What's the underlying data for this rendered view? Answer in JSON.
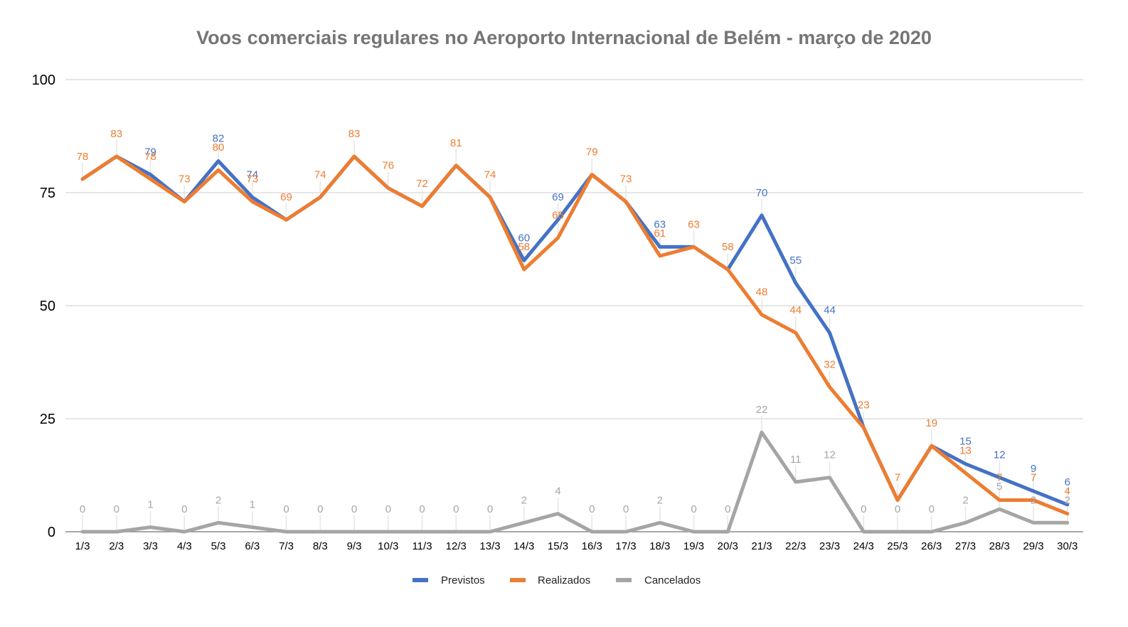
{
  "chart_data": {
    "type": "line",
    "title": "Voos comerciais regulares no Aeroporto Internacional de Belém - março de 2020",
    "xlabel": "",
    "ylabel": "",
    "ylim": [
      0,
      100
    ],
    "yticks": [
      0,
      25,
      50,
      75,
      100
    ],
    "grid": true,
    "legend_position": "bottom-center",
    "categories": [
      "1/3",
      "2/3",
      "3/3",
      "4/3",
      "5/3",
      "6/3",
      "7/3",
      "8/3",
      "9/3",
      "10/3",
      "11/3",
      "12/3",
      "13/3",
      "14/3",
      "15/3",
      "16/3",
      "17/3",
      "18/3",
      "19/3",
      "20/3",
      "21/3",
      "22/3",
      "23/3",
      "24/3",
      "25/3",
      "26/3",
      "27/3",
      "28/3",
      "29/3",
      "30/3"
    ],
    "series": [
      {
        "name": "Previstos",
        "color": "#4472c4",
        "values": [
          78,
          83,
          79,
          73,
          82,
          74,
          69,
          74,
          83,
          76,
          72,
          81,
          74,
          60,
          69,
          79,
          73,
          63,
          63,
          58,
          70,
          55,
          44,
          23,
          7,
          19,
          15,
          12,
          9,
          6
        ],
        "show_labels": [
          false,
          false,
          true,
          false,
          true,
          true,
          false,
          false,
          false,
          false,
          false,
          false,
          false,
          true,
          true,
          false,
          false,
          true,
          false,
          false,
          true,
          true,
          true,
          false,
          false,
          false,
          true,
          true,
          true,
          true
        ]
      },
      {
        "name": "Realizados",
        "color": "#ed7d31",
        "values": [
          78,
          83,
          78,
          73,
          80,
          73,
          69,
          74,
          83,
          76,
          72,
          81,
          74,
          58,
          65,
          79,
          73,
          61,
          63,
          58,
          48,
          44,
          32,
          23,
          7,
          19,
          13,
          7,
          7,
          4
        ],
        "show_labels": [
          true,
          true,
          true,
          true,
          true,
          true,
          true,
          true,
          true,
          true,
          true,
          true,
          true,
          true,
          true,
          true,
          true,
          true,
          true,
          true,
          true,
          true,
          true,
          true,
          true,
          true,
          true,
          true,
          true,
          true
        ]
      },
      {
        "name": "Cancelados",
        "color": "#a5a5a5",
        "values": [
          0,
          0,
          1,
          0,
          2,
          1,
          0,
          0,
          0,
          0,
          0,
          0,
          0,
          2,
          4,
          0,
          0,
          2,
          0,
          0,
          22,
          11,
          12,
          0,
          0,
          0,
          2,
          5,
          2,
          2
        ],
        "show_labels": [
          true,
          true,
          true,
          true,
          true,
          true,
          true,
          true,
          true,
          true,
          true,
          true,
          true,
          true,
          true,
          true,
          true,
          true,
          true,
          true,
          true,
          true,
          true,
          true,
          true,
          true,
          true,
          true,
          true,
          true
        ]
      }
    ]
  }
}
